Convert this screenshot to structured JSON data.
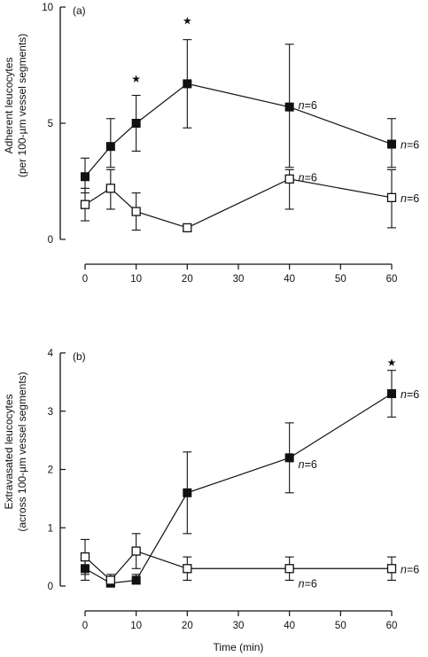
{
  "chart_data": [
    {
      "type": "line",
      "panel_label": "(a)",
      "xlabel": "",
      "ylabel": [
        "Adherent leucocytes",
        "(per 100-µm vessel segments)"
      ],
      "ylim": [
        0,
        10
      ],
      "yticks": [
        0,
        5,
        10
      ],
      "xlim": [
        0,
        60
      ],
      "xticks": [
        0,
        10,
        20,
        30,
        40,
        50,
        60
      ],
      "x": [
        0,
        5,
        10,
        20,
        40,
        60
      ],
      "series": [
        {
          "marker": "filled-square",
          "values": [
            2.7,
            4.0,
            5.0,
            6.7,
            5.7,
            4.1
          ],
          "err_upper": [
            3.5,
            5.2,
            6.2,
            8.6,
            8.4,
            5.2
          ],
          "err_lower": [
            2.0,
            3.1,
            3.8,
            4.8,
            3.1,
            3.1
          ]
        },
        {
          "marker": "open-square",
          "values": [
            1.5,
            2.2,
            1.2,
            0.5,
            2.6,
            1.8
          ],
          "err_upper": [
            2.2,
            3.0,
            2.0,
            0.6,
            3.0,
            3.0
          ],
          "err_lower": [
            0.8,
            1.3,
            0.4,
            0.4,
            1.3,
            0.5
          ]
        }
      ],
      "significance": [
        {
          "x": 10,
          "y": 6.9,
          "symbol": "★"
        },
        {
          "x": 20,
          "y": 9.4,
          "symbol": "★"
        }
      ],
      "annotations": [
        {
          "text": "n=6",
          "x": 40,
          "y": 5.8
        },
        {
          "text": "n=6",
          "x": 60,
          "y": 4.1
        },
        {
          "text": "n=6",
          "x": 40,
          "y": 2.7
        },
        {
          "text": "n=6",
          "x": 60,
          "y": 1.8
        }
      ]
    },
    {
      "type": "line",
      "panel_label": "(b)",
      "xlabel": "Time (min)",
      "ylabel": [
        "Extravasated leucocytes",
        "(across 100-µm vessel segments)"
      ],
      "ylim": [
        0,
        4
      ],
      "yticks": [
        0,
        1,
        2,
        3,
        4
      ],
      "xlim": [
        0,
        60
      ],
      "xticks": [
        0,
        10,
        20,
        30,
        40,
        50,
        60
      ],
      "x": [
        0,
        5,
        10,
        20,
        40,
        60
      ],
      "series": [
        {
          "marker": "filled-square",
          "values": [
            0.3,
            0.05,
            0.1,
            1.6,
            2.2,
            3.3
          ],
          "err_upper": [
            0.5,
            0.1,
            0.2,
            2.3,
            2.8,
            3.7
          ],
          "err_lower": [
            0.1,
            0.0,
            0.05,
            0.9,
            1.6,
            2.9
          ]
        },
        {
          "marker": "open-square",
          "values": [
            0.5,
            0.1,
            0.6,
            0.3,
            0.3,
            0.3
          ],
          "err_upper": [
            0.8,
            0.2,
            0.9,
            0.5,
            0.5,
            0.5
          ],
          "err_lower": [
            0.2,
            0.0,
            0.3,
            0.1,
            0.1,
            0.1
          ]
        }
      ],
      "significance": [
        {
          "x": 60,
          "y": 3.83,
          "symbol": "★"
        }
      ],
      "annotations": [
        {
          "text": "n=6",
          "x": 60,
          "y": 3.3
        },
        {
          "text": "n=6",
          "x": 40,
          "y": 2.1
        },
        {
          "text": "n=6",
          "x": 60,
          "y": 0.3
        },
        {
          "text": "n=6",
          "x": 40,
          "y": 0.05
        }
      ]
    }
  ]
}
